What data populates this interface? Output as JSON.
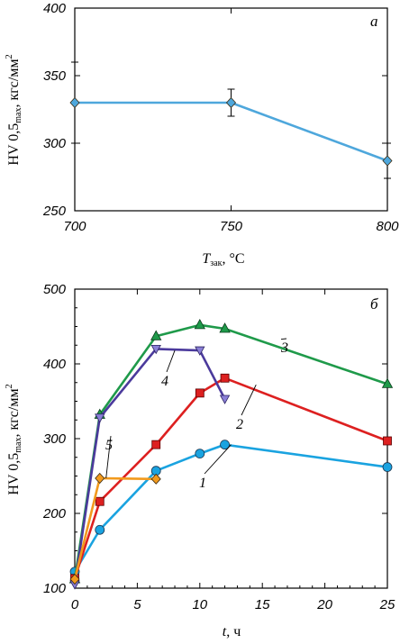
{
  "chart_data": [
    {
      "type": "line",
      "panel_label": "а",
      "xlabel": {
        "symbol": "T",
        "subscript": "зак",
        "unit": ", °C"
      },
      "ylabel": {
        "main": "HV 0,5",
        "subscript": "max",
        "unit": ", кгс/мм",
        "sup": "2"
      },
      "xlim": [
        700,
        800
      ],
      "ylim": [
        250,
        400
      ],
      "xticks": [
        700,
        750,
        800
      ],
      "yticks": [
        250,
        300,
        350,
        400
      ],
      "grid": false,
      "series": [
        {
          "color": "#4ea7dc",
          "marker": "diamond",
          "x": [
            700,
            750,
            800
          ],
          "y": [
            330,
            330,
            287
          ],
          "err": [
            30,
            10,
            13
          ]
        }
      ]
    },
    {
      "type": "line",
      "panel_label": "б",
      "xlabel": {
        "symbol": "t",
        "unit": ", ч"
      },
      "ylabel": {
        "main": "HV 0,5",
        "subscript": "max",
        "unit": ", кгс/мм",
        "sup": "2"
      },
      "xlim": [
        0,
        25
      ],
      "ylim": [
        100,
        500
      ],
      "xticks": [
        0,
        5,
        10,
        15,
        20,
        25
      ],
      "yticks": [
        100,
        200,
        300,
        400,
        500
      ],
      "grid": false,
      "series": [
        {
          "label": "1",
          "color": "#1aa3e0",
          "marker": "circle",
          "x": [
            0,
            2,
            6.5,
            10,
            12,
            25
          ],
          "y": [
            122,
            178,
            257,
            280,
            292,
            262
          ]
        },
        {
          "label": "2",
          "color": "#dd2020",
          "marker": "square",
          "x": [
            0,
            2,
            6.5,
            10,
            12,
            25
          ],
          "y": [
            113,
            216,
            292,
            361,
            381,
            297
          ]
        },
        {
          "label": "3",
          "color": "#1f9a4a",
          "marker": "triangle-up",
          "x": [
            0,
            2,
            6.5,
            10,
            12,
            25
          ],
          "y": [
            112,
            332,
            437,
            452,
            447,
            373
          ]
        },
        {
          "label": "4",
          "color": "#4b3a9c",
          "marker": "triangle-down",
          "x": [
            0,
            2,
            6.5,
            10,
            12
          ],
          "y": [
            105,
            328,
            420,
            418,
            353
          ]
        },
        {
          "label": "5",
          "color": "#f29a1d",
          "marker": "diamond",
          "x": [
            0,
            2,
            6.5
          ],
          "y": [
            112,
            247,
            246
          ]
        }
      ]
    }
  ]
}
